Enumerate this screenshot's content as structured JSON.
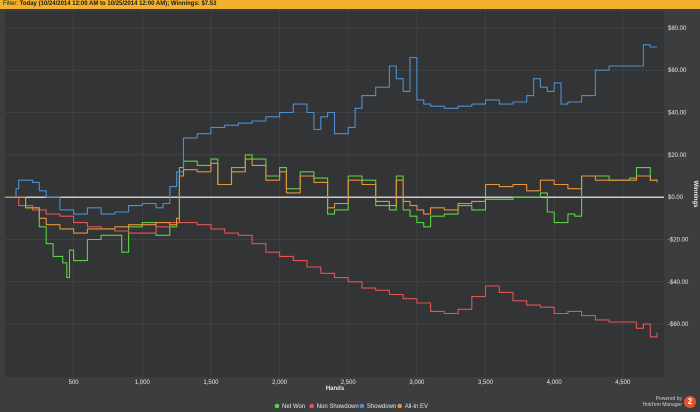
{
  "filter": {
    "label": "Filter:",
    "text": "Today (10/24/2014 12:00 AM to 10/25/2014 12:00 AM); Winnings: $7.53"
  },
  "chart_data": {
    "type": "line",
    "xlabel": "Hands",
    "ylabel": "Winnings",
    "xlim": [
      0,
      4800
    ],
    "ylim": [
      -85,
      88
    ],
    "x_ticks": [
      500,
      1000,
      1500,
      2000,
      2500,
      3000,
      3500,
      4000,
      4500
    ],
    "x_tick_labels": [
      "500",
      "1,000",
      "1,500",
      "2,000",
      "2,500",
      "3,000",
      "3,500",
      "4,000",
      "4,500"
    ],
    "y_ticks": [
      80,
      60,
      40,
      20,
      0,
      -20,
      -40,
      -60
    ],
    "y_tick_labels": [
      "$80.00",
      "$60.00",
      "$40.00",
      "$20.00",
      "$0.00",
      "-$20.00",
      "-$40.00",
      "-$60.00"
    ],
    "grid": true,
    "legend_position": "bottom",
    "series": [
      {
        "name": "Net Won",
        "color": "#5bd246",
        "x": [
          0,
          150,
          250,
          300,
          350,
          420,
          450,
          470,
          500,
          600,
          700,
          850,
          900,
          1000,
          1100,
          1200,
          1250,
          1270,
          1300,
          1400,
          1500,
          1550,
          1650,
          1750,
          1800,
          1900,
          2000,
          2050,
          2150,
          2250,
          2350,
          2400,
          2500,
          2600,
          2700,
          2800,
          2850,
          2900,
          2950,
          3000,
          3050,
          3100,
          3200,
          3300,
          3400,
          3500,
          3600,
          3700,
          3800,
          3900,
          3950,
          4000,
          4100,
          4150,
          4200,
          4300,
          4400,
          4500,
          4550,
          4600,
          4700,
          4750
        ],
        "y": [
          0,
          -5,
          -14,
          -22,
          -28,
          -31,
          -38,
          -25,
          -30,
          -20,
          -18,
          -26,
          -14,
          -12,
          -18,
          -14,
          -12,
          14,
          17,
          15,
          18,
          6,
          14,
          20,
          18,
          10,
          14,
          4,
          12,
          9,
          -8,
          -6,
          10,
          8,
          -4,
          -6,
          10,
          -6,
          -9,
          -12,
          -14,
          -9,
          -8,
          -4,
          -6,
          -1,
          -1,
          0,
          0,
          2,
          -7,
          -12,
          -8,
          -9,
          10,
          10,
          8,
          8,
          9,
          14,
          8,
          7.53
        ]
      },
      {
        "name": "Non Showdown",
        "color": "#e25555",
        "x": [
          0,
          100,
          200,
          300,
          400,
          500,
          600,
          700,
          800,
          900,
          1000,
          1100,
          1200,
          1300,
          1400,
          1500,
          1600,
          1700,
          1800,
          1900,
          2000,
          2100,
          2200,
          2300,
          2400,
          2500,
          2600,
          2700,
          2800,
          2900,
          3000,
          3100,
          3200,
          3300,
          3400,
          3500,
          3600,
          3700,
          3800,
          3900,
          4000,
          4100,
          4200,
          4300,
          4400,
          4500,
          4600,
          4650,
          4700,
          4750
        ],
        "y": [
          0,
          -4,
          -6,
          -8,
          -9,
          -12,
          -14,
          -15,
          -16,
          -17,
          -17,
          -14,
          -12,
          -12,
          -13,
          -15,
          -17,
          -18,
          -22,
          -26,
          -28,
          -30,
          -33,
          -36,
          -38,
          -40,
          -43,
          -44,
          -46,
          -48,
          -50,
          -54,
          -55,
          -53,
          -47,
          -42,
          -45,
          -49,
          -51,
          -52,
          -55,
          -54,
          -56,
          -58,
          -59,
          -59,
          -62,
          -60,
          -66,
          -64
        ]
      },
      {
        "name": "Showdown",
        "color": "#4d8fcf",
        "x": [
          0,
          80,
          100,
          200,
          250,
          300,
          400,
          500,
          600,
          700,
          800,
          900,
          1000,
          1100,
          1150,
          1200,
          1250,
          1300,
          1400,
          1500,
          1600,
          1700,
          1800,
          1900,
          2000,
          2100,
          2200,
          2250,
          2300,
          2350,
          2400,
          2500,
          2550,
          2600,
          2700,
          2800,
          2850,
          2900,
          2950,
          3000,
          3050,
          3100,
          3200,
          3300,
          3400,
          3500,
          3600,
          3700,
          3800,
          3850,
          3900,
          3950,
          4000,
          4050,
          4100,
          4200,
          4300,
          4400,
          4500,
          4600,
          4650,
          4700,
          4750
        ],
        "y": [
          0,
          4,
          8,
          7,
          3,
          0,
          -6,
          -8,
          -5,
          -8,
          -7,
          -4,
          -3,
          -5,
          -3,
          5,
          12,
          28,
          30,
          33,
          34,
          35,
          36,
          38,
          40,
          44,
          40,
          32,
          38,
          40,
          30,
          33,
          42,
          48,
          52,
          62,
          56,
          50,
          66,
          46,
          44,
          43,
          42,
          43,
          44,
          46,
          44,
          45,
          48,
          56,
          52,
          50,
          54,
          44,
          45,
          48,
          60,
          62,
          62,
          62,
          72,
          71,
          71
        ]
      },
      {
        "name": "All-In EV",
        "color": "#e8923a",
        "x": [
          0,
          150,
          250,
          300,
          400,
          500,
          600,
          700,
          800,
          900,
          1000,
          1100,
          1200,
          1250,
          1270,
          1300,
          1400,
          1500,
          1550,
          1650,
          1750,
          1800,
          1900,
          2000,
          2050,
          2150,
          2250,
          2350,
          2400,
          2500,
          2600,
          2700,
          2800,
          2850,
          2900,
          2950,
          3000,
          3050,
          3100,
          3200,
          3300,
          3400,
          3500,
          3600,
          3700,
          3800,
          3900,
          4000,
          4100,
          4200,
          4300,
          4400,
          4500,
          4600,
          4700,
          4750
        ],
        "y": [
          0,
          -5,
          -10,
          -13,
          -15,
          -17,
          -15,
          -15,
          -14,
          -13,
          -13,
          -12,
          -13,
          -10,
          10,
          13,
          12,
          16,
          6,
          12,
          18,
          15,
          8,
          12,
          2,
          10,
          7,
          -5,
          -3,
          8,
          6,
          -2,
          -4,
          8,
          -2,
          -4,
          -6,
          -8,
          -5,
          -6,
          -3,
          -2,
          6,
          5,
          6,
          3,
          8,
          6,
          4,
          10,
          8,
          8,
          8,
          10,
          8,
          7
        ]
      }
    ]
  },
  "branding": {
    "line1": "Powered by",
    "line2": "Hold'em Manager",
    "badge": "2"
  }
}
